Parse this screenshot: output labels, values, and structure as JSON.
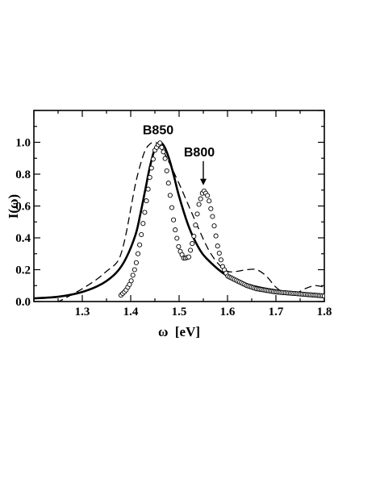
{
  "chart_data": {
    "type": "line",
    "xlabel": "ω  [eV]",
    "ylabel": "I(ω)",
    "xlim": [
      1.2,
      1.8
    ],
    "ylim": [
      0.0,
      1.2
    ],
    "xticks": [
      1.3,
      1.4,
      1.5,
      1.6,
      1.7,
      1.8
    ],
    "yticks": [
      0.0,
      0.2,
      0.4,
      0.6,
      0.8,
      1.0
    ],
    "xtick_labels": [
      "1.3",
      "1.4",
      "1.5",
      "1.6",
      "1.7",
      "1.8"
    ],
    "ytick_labels": [
      "0.0",
      "0.2",
      "0.4",
      "0.6",
      "0.8",
      "1.0"
    ],
    "grid": false,
    "series": [
      {
        "style": "solid",
        "color": "#000000",
        "x": [
          1.2,
          1.25,
          1.3,
          1.34,
          1.37,
          1.39,
          1.41,
          1.42,
          1.43,
          1.44,
          1.45,
          1.46,
          1.47,
          1.48,
          1.49,
          1.5,
          1.52,
          1.54,
          1.56,
          1.6,
          1.65,
          1.7,
          1.75,
          1.8
        ],
        "y": [
          0.02,
          0.03,
          0.06,
          0.11,
          0.18,
          0.27,
          0.42,
          0.55,
          0.7,
          0.85,
          0.96,
          1.0,
          0.97,
          0.89,
          0.78,
          0.66,
          0.47,
          0.34,
          0.26,
          0.16,
          0.1,
          0.07,
          0.05,
          0.04
        ]
      },
      {
        "style": "dashed",
        "color": "#000000",
        "x": [
          1.2,
          1.22,
          1.25,
          1.27,
          1.3,
          1.33,
          1.35,
          1.37,
          1.38,
          1.39,
          1.4,
          1.41,
          1.42,
          1.43,
          1.44,
          1.45,
          1.46,
          1.47,
          1.48,
          1.5,
          1.52,
          1.54,
          1.56,
          1.58,
          1.6,
          1.62,
          1.64,
          1.66,
          1.68,
          1.7,
          1.72,
          1.74,
          1.76,
          1.78,
          1.8
        ],
        "y": [
          -0.02,
          -0.02,
          0.0,
          0.03,
          0.08,
          0.14,
          0.19,
          0.24,
          0.3,
          0.42,
          0.58,
          0.74,
          0.86,
          0.95,
          0.99,
          1.0,
          0.98,
          0.93,
          0.87,
          0.74,
          0.6,
          0.46,
          0.33,
          0.24,
          0.19,
          0.19,
          0.2,
          0.2,
          0.16,
          0.09,
          0.05,
          0.05,
          0.08,
          0.1,
          0.09
        ]
      },
      {
        "style": "circles",
        "color": "#000000",
        "x": [
          1.38,
          1.39,
          1.4,
          1.41,
          1.42,
          1.43,
          1.44,
          1.45,
          1.46,
          1.47,
          1.48,
          1.49,
          1.5,
          1.51,
          1.52,
          1.53,
          1.54,
          1.55,
          1.56,
          1.57,
          1.58,
          1.59,
          1.6,
          1.62,
          1.64,
          1.66,
          1.68,
          1.7,
          1.72,
          1.74,
          1.76,
          1.78,
          1.8
        ],
        "y": [
          0.04,
          0.07,
          0.12,
          0.22,
          0.38,
          0.58,
          0.79,
          0.95,
          1.0,
          0.92,
          0.7,
          0.48,
          0.33,
          0.27,
          0.28,
          0.4,
          0.6,
          0.7,
          0.66,
          0.52,
          0.34,
          0.22,
          0.16,
          0.13,
          0.1,
          0.08,
          0.07,
          0.06,
          0.055,
          0.05,
          0.045,
          0.04,
          0.035
        ]
      }
    ],
    "annotations": [
      {
        "text": "B850",
        "x": 1.46,
        "y": 1.0
      },
      {
        "text": "B800",
        "x": 1.55,
        "y": 0.7
      }
    ]
  }
}
